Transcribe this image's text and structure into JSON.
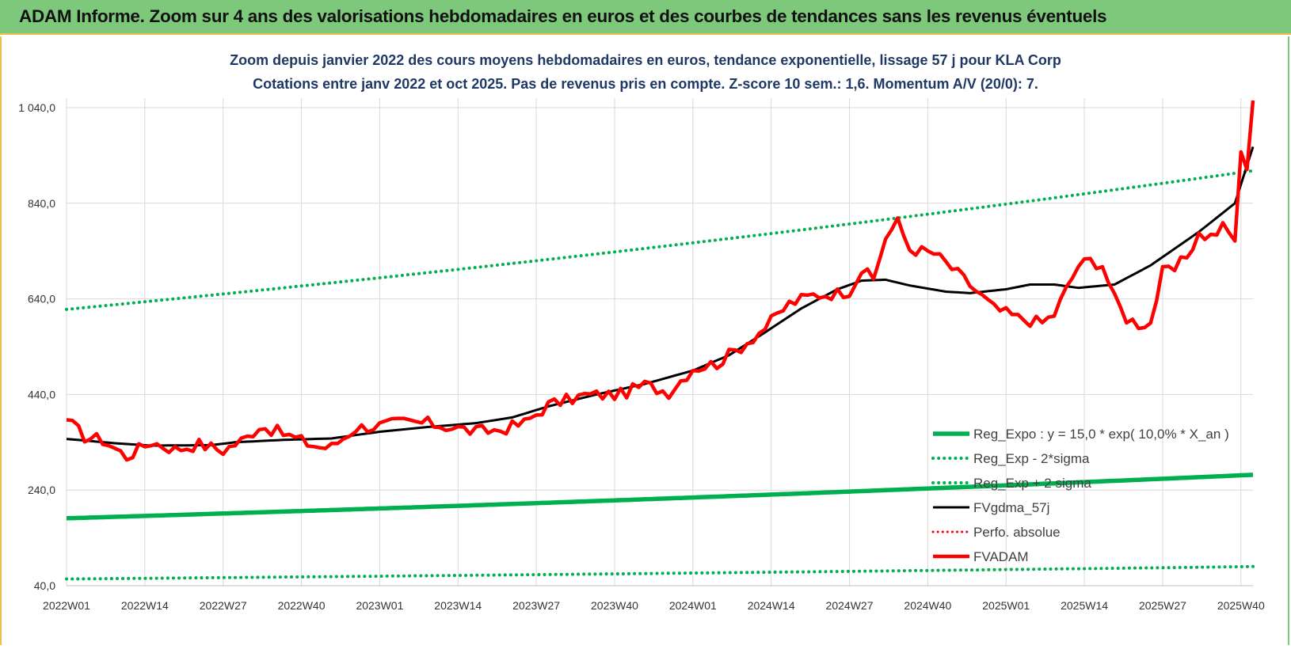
{
  "banner": {
    "title": "ADAM Informe. Zoom sur 4 ans des valorisations hebdomadaires en euros et des courbes de tendances sans les revenus éventuels"
  },
  "colors": {
    "banner_bg": "#7dc87a",
    "reg_expo": "#00b050",
    "fvgdma": "#000000",
    "fvadam": "#ff0000",
    "perfo": "#ff0000",
    "title_text": "#1f3864",
    "grid": "#d9d9d9"
  },
  "chart_data": {
    "type": "line",
    "title": "Zoom depuis janvier 2022 des cours moyens hebdomadaires en euros, tendance exponentielle, lissage 57 j pour KLA Corp",
    "subtitle": "Cotations entre janv 2022 et oct 2025. Pas de revenus pris en compte. Z-score 10 sem.: 1,6. Momentum A/V (20/0): 7.",
    "xlabel": "",
    "ylabel": "",
    "ylim": [
      40,
      1040
    ],
    "y_ticks": [
      40,
      240,
      440,
      640,
      840,
      1040
    ],
    "y_tick_labels": [
      "40,0",
      "240,0",
      "440,0",
      "640,0",
      "840,0",
      "1 040,0"
    ],
    "x_tick_labels": [
      "2022W01",
      "2022W14",
      "2022W27",
      "2022W40",
      "2023W01",
      "2023W14",
      "2023W27",
      "2023W40",
      "2024W01",
      "2024W14",
      "2024W27",
      "2024W40",
      "2025W01",
      "2025W14",
      "2025W27",
      "2025W40"
    ],
    "x_tick_index": [
      0,
      13,
      26,
      39,
      52,
      65,
      78,
      91,
      104,
      117,
      130,
      143,
      156,
      169,
      182,
      195
    ],
    "n_weeks": 198,
    "grid": true,
    "legend_position": "bottom-right",
    "series": [
      {
        "name": "Reg_Expo : y = 15,0 * exp( 10,0% *  X_an )",
        "style": "solid-thick",
        "key": [
          [
            0,
            181
          ],
          [
            197,
            272
          ]
        ]
      },
      {
        "name": "Reg_Exp - 2*sigma",
        "style": "dotted",
        "key": [
          [
            0,
            54
          ],
          [
            197,
            80
          ]
        ]
      },
      {
        "name": "Reg_Exp + 2 sigma",
        "style": "dotted",
        "key": [
          [
            0,
            618
          ],
          [
            197,
            908
          ]
        ]
      },
      {
        "name": "FVgdma_57j",
        "style": "solid",
        "key": [
          [
            0,
            347
          ],
          [
            8,
            338
          ],
          [
            14,
            333
          ],
          [
            24,
            334
          ],
          [
            28,
            340
          ],
          [
            36,
            345
          ],
          [
            44,
            348
          ],
          [
            52,
            362
          ],
          [
            60,
            372
          ],
          [
            68,
            380
          ],
          [
            74,
            392
          ],
          [
            80,
            415
          ],
          [
            88,
            440
          ],
          [
            96,
            462
          ],
          [
            104,
            490
          ],
          [
            110,
            522
          ],
          [
            116,
            570
          ],
          [
            122,
            620
          ],
          [
            128,
            660
          ],
          [
            132,
            678
          ],
          [
            136,
            680
          ],
          [
            140,
            668
          ],
          [
            146,
            655
          ],
          [
            150,
            652
          ],
          [
            156,
            660
          ],
          [
            160,
            670
          ],
          [
            164,
            670
          ],
          [
            168,
            663
          ],
          [
            174,
            670
          ],
          [
            180,
            710
          ],
          [
            188,
            780
          ],
          [
            194,
            840
          ],
          [
            197,
            958
          ]
        ]
      },
      {
        "name": "Perfo. absolue",
        "style": "dotted",
        "key": []
      },
      {
        "name": "FVADAM",
        "style": "solid-thick",
        "key": [
          [
            0,
            387
          ],
          [
            3,
            352
          ],
          [
            6,
            345
          ],
          [
            10,
            310
          ],
          [
            14,
            341
          ],
          [
            18,
            325
          ],
          [
            22,
            336
          ],
          [
            26,
            323
          ],
          [
            30,
            350
          ],
          [
            32,
            375
          ],
          [
            36,
            358
          ],
          [
            40,
            338
          ],
          [
            42,
            330
          ],
          [
            44,
            330
          ],
          [
            48,
            370
          ],
          [
            52,
            375
          ],
          [
            56,
            382
          ],
          [
            60,
            380
          ],
          [
            66,
            367
          ],
          [
            68,
            362
          ],
          [
            72,
            366
          ],
          [
            76,
            380
          ],
          [
            80,
            418
          ],
          [
            86,
            438
          ],
          [
            92,
            440
          ],
          [
            96,
            460
          ],
          [
            100,
            445
          ],
          [
            104,
            495
          ],
          [
            108,
            505
          ],
          [
            112,
            540
          ],
          [
            116,
            580
          ],
          [
            120,
            630
          ],
          [
            124,
            648
          ],
          [
            128,
            652
          ],
          [
            130,
            658
          ],
          [
            132,
            700
          ],
          [
            134,
            680
          ],
          [
            136,
            770
          ],
          [
            138,
            800
          ],
          [
            140,
            745
          ],
          [
            144,
            735
          ],
          [
            146,
            715
          ],
          [
            150,
            670
          ],
          [
            154,
            620
          ],
          [
            158,
            600
          ],
          [
            162,
            590
          ],
          [
            164,
            608
          ],
          [
            168,
            710
          ],
          [
            170,
            720
          ],
          [
            172,
            712
          ],
          [
            174,
            640
          ],
          [
            176,
            600
          ],
          [
            178,
            588
          ],
          [
            180,
            590
          ],
          [
            182,
            695
          ],
          [
            184,
            700
          ],
          [
            186,
            730
          ],
          [
            188,
            775
          ],
          [
            190,
            770
          ],
          [
            192,
            790
          ],
          [
            194,
            765
          ],
          [
            195,
            940
          ],
          [
            196,
            920
          ],
          [
            197,
            1055
          ]
        ]
      }
    ]
  }
}
